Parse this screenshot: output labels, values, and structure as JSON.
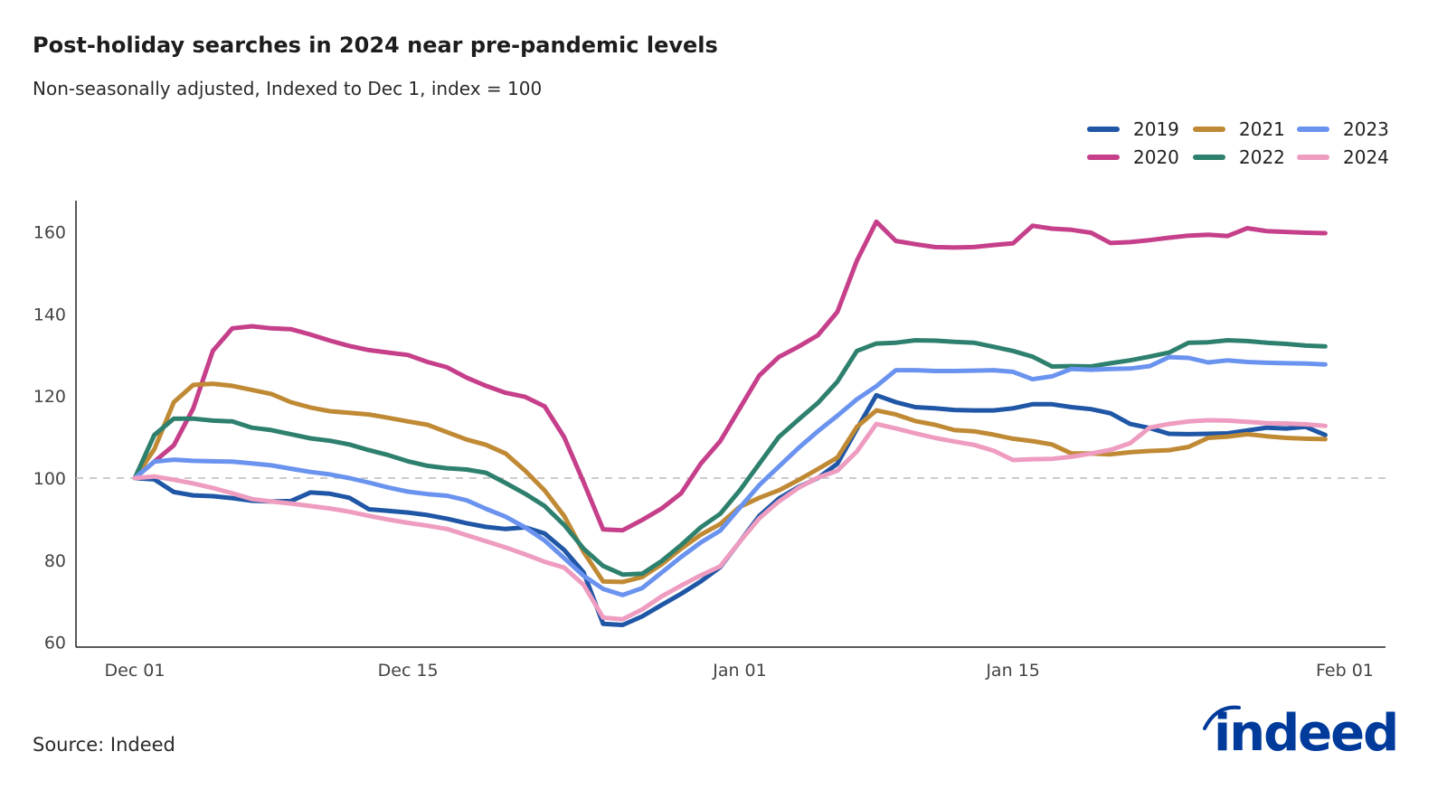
{
  "title": "Post-holiday searches in 2024 near pre-pandemic levels",
  "subtitle": "Non-seasonally adjusted, Indexed to Dec 1, index = 100",
  "source": "Source: Indeed",
  "logo": "indeed",
  "chart_data": {
    "type": "line",
    "title": "Post-holiday searches in 2024 near pre-pandemic levels",
    "subtitle": "Non-seasonally adjusted, Indexed to Dec 1, index = 100",
    "x_start": "Dec 01",
    "x_end": "Jan 31",
    "x_ticks": [
      "Dec 01",
      "Dec 15",
      "Jan 01",
      "Jan 15",
      "Feb 01"
    ],
    "x_tick_days": [
      0,
      14,
      31,
      45,
      62
    ],
    "y_ticks": [
      60,
      80,
      100,
      120,
      140,
      160
    ],
    "ylim": [
      60,
      167
    ],
    "reference_line": 100,
    "grid": false,
    "legend_position": "top-right",
    "series": [
      {
        "name": "2019",
        "color": "#1f56a6",
        "values": [
          100,
          99.7,
          96.6,
          95.8,
          95.6,
          95.1,
          94.5,
          94.3,
          94.4,
          96.5,
          96.2,
          95.2,
          92.4,
          92,
          91.6,
          91,
          90.1,
          89,
          88.1,
          87.6,
          88,
          86.5,
          82.5,
          77,
          64.5,
          64.2,
          66.3,
          69.1,
          71.8,
          74.8,
          78.3,
          84.5,
          90.8,
          95,
          97.8,
          100,
          103.5,
          112,
          120.2,
          118.5,
          117.3,
          117,
          116.6,
          116.5,
          116.5,
          117,
          118,
          118,
          117.3,
          116.8,
          115.8,
          113.2,
          112.2,
          110.8,
          110.7,
          110.8,
          110.9,
          111.6,
          112.3,
          112.1,
          112.5,
          110.5
        ]
      },
      {
        "name": "2020",
        "color": "#c63f8a",
        "values": [
          100,
          104,
          108,
          117,
          131,
          136.5,
          137,
          136.5,
          136.3,
          135,
          133.5,
          132.2,
          131.2,
          130.6,
          130,
          128.3,
          127,
          124.5,
          122.5,
          120.8,
          119.8,
          117.5,
          110,
          99,
          87.5,
          87.3,
          89.8,
          92.6,
          96.3,
          103.5,
          109,
          117,
          125,
          129.5,
          132,
          134.8,
          140.5,
          153,
          162.5,
          157.8,
          157,
          156.3,
          156.2,
          156.3,
          156.8,
          157.2,
          161.5,
          160.8,
          160.5,
          159.8,
          157.3,
          157.5,
          158,
          158.6,
          159.1,
          159.3,
          159,
          160.9,
          160.2,
          160,
          159.8,
          159.7
        ]
      },
      {
        "name": "2021",
        "color": "#c08a35",
        "values": [
          100,
          107,
          118.5,
          122.7,
          123,
          122.5,
          121.5,
          120.5,
          118.5,
          117.2,
          116.3,
          115.9,
          115.5,
          114.7,
          113.8,
          113,
          111.2,
          109.4,
          108.1,
          106,
          101.8,
          97,
          90.8,
          82,
          74.8,
          74.7,
          75.9,
          79,
          82.8,
          86.2,
          88.8,
          93,
          95.2,
          97,
          99.5,
          102.2,
          105,
          112.5,
          116.5,
          115.5,
          113.9,
          113,
          111.7,
          111.4,
          110.6,
          109.6,
          109,
          108.2,
          106,
          106,
          105.8,
          106.3,
          106.6,
          106.8,
          107.6,
          109.8,
          110.1,
          110.7,
          110.2,
          109.8,
          109.6,
          109.5
        ]
      },
      {
        "name": "2022",
        "color": "#2e806e",
        "values": [
          100,
          110.5,
          114.5,
          114.5,
          114,
          113.8,
          112.3,
          111.7,
          110.7,
          109.7,
          109.1,
          108.2,
          106.8,
          105.6,
          104.1,
          103,
          102.4,
          102.1,
          101.3,
          98.8,
          96.2,
          93.2,
          88.6,
          82.8,
          78.6,
          76.5,
          76.7,
          79.8,
          83.7,
          88,
          91.3,
          97,
          103.5,
          110,
          114.2,
          118.3,
          123.5,
          131,
          132.8,
          133,
          133.6,
          133.5,
          133.2,
          133,
          132,
          131,
          129.6,
          127.2,
          127.3,
          127.2,
          128,
          128.7,
          129.6,
          130.6,
          133,
          133.1,
          133.6,
          133.4,
          133,
          132.7,
          132.3,
          132.1
        ]
      },
      {
        "name": "2023",
        "color": "#6a93ef",
        "values": [
          100,
          104,
          104.5,
          104.2,
          104.1,
          104,
          103.6,
          103.1,
          102.3,
          101.5,
          100.9,
          100,
          98.9,
          97.7,
          96.7,
          96.1,
          95.7,
          94.6,
          92.5,
          90.6,
          88,
          84.8,
          80.5,
          76.2,
          73,
          71.5,
          73.2,
          77,
          80.8,
          84.3,
          87.2,
          92.8,
          98.3,
          102.8,
          107.3,
          111.4,
          115.2,
          119.2,
          122.4,
          126.3,
          126.3,
          126.1,
          126.1,
          126.2,
          126.3,
          125.9,
          124.1,
          124.8,
          126.6,
          126.4,
          126.6,
          126.7,
          127.3,
          129.5,
          129.3,
          128.2,
          128.7,
          128.3,
          128.1,
          128,
          127.9,
          127.7
        ]
      },
      {
        "name": "2024",
        "color": "#ee9cc0",
        "values": [
          100,
          100.4,
          99.6,
          98.7,
          97.6,
          96.3,
          94.9,
          94.3,
          93.8,
          93.2,
          92.6,
          91.8,
          90.8,
          89.9,
          89.1,
          88.4,
          87.6,
          86.1,
          84.6,
          83.1,
          81.4,
          79.6,
          78.2,
          74,
          66,
          65.6,
          68,
          71.2,
          73.8,
          76.3,
          78.5,
          84.5,
          90.2,
          94.3,
          97.6,
          100.1,
          101.8,
          106.5,
          113.2,
          112.1,
          110.9,
          109.8,
          108.9,
          108.1,
          106.7,
          104.4,
          104.6,
          104.7,
          105.2,
          106,
          106.9,
          108.5,
          112.3,
          113.2,
          113.8,
          114.1,
          114,
          113.7,
          113.4,
          113.3,
          113.1,
          112.7
        ]
      }
    ],
    "legend_order": [
      "2019",
      "2021",
      "2023",
      "2020",
      "2022",
      "2024"
    ]
  }
}
